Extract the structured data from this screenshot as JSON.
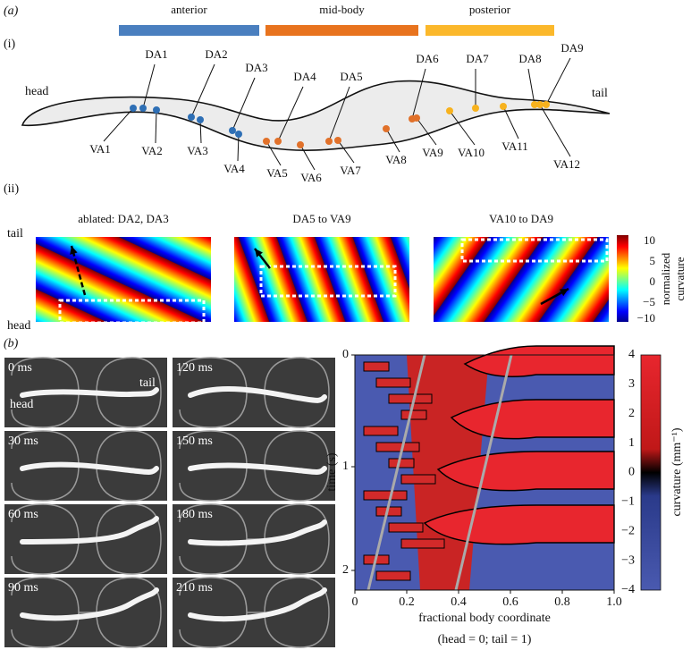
{
  "panel_a": {
    "label": "(a)",
    "regions": [
      "anterior",
      "mid-body",
      "posterior"
    ],
    "sub_i": "(i)",
    "head": "head",
    "tail": "tail",
    "dorsal": [
      "DA1",
      "DA2",
      "DA3",
      "DA4",
      "DA5",
      "DA6",
      "DA7",
      "DA8",
      "DA9"
    ],
    "ventral": [
      "VA1",
      "VA2",
      "VA3",
      "VA4",
      "VA5",
      "VA6",
      "VA7",
      "VA8",
      "VA9",
      "VA10",
      "VA11",
      "VA12"
    ],
    "sub_ii": "(ii)",
    "heatmap_titles": [
      "ablated: DA2, DA3",
      "DA5 to VA9",
      "VA10 to DA9"
    ],
    "axis_top": "tail",
    "axis_bottom": "head",
    "colorbar_ticks": [
      "10",
      "5",
      "0",
      "−5",
      "−10"
    ],
    "colorbar_label": [
      "normalized",
      "curvature"
    ]
  },
  "panel_b": {
    "label": "(b)",
    "frames": [
      "0 ms",
      "30 ms",
      "60 ms",
      "90 ms",
      "120 ms",
      "150 ms",
      "180 ms",
      "210 ms"
    ],
    "frame_head": "head",
    "frame_tail": "tail",
    "y_label": "time (s)",
    "y_ticks": [
      "0",
      "1",
      "2"
    ],
    "x_ticks": [
      "0",
      "0.2",
      "0.4",
      "0.6",
      "0.8",
      "1.0"
    ],
    "x_label": "fractional body coordinate",
    "x_sublabel": "(head = 0; tail = 1)",
    "colorbar_ticks": [
      "4",
      "3",
      "2",
      "1",
      "0",
      "−1",
      "−2",
      "−3",
      "−4"
    ],
    "colorbar_label": "curvature (mm⁻¹)"
  }
}
